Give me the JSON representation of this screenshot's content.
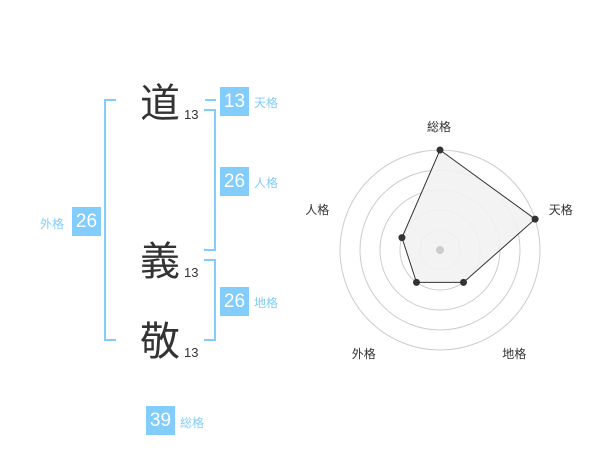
{
  "name": [
    {
      "char": "道",
      "strokes": "13"
    },
    {
      "char": "義",
      "strokes": "13"
    },
    {
      "char": "敬",
      "strokes": "13"
    }
  ],
  "kaku": {
    "tenkaku": {
      "label": "天格",
      "value": "13"
    },
    "jinkaku": {
      "label": "人格",
      "value": "26"
    },
    "chikaku": {
      "label": "地格",
      "value": "26"
    },
    "gaikaku": {
      "label": "外格",
      "value": "26"
    },
    "soukaku": {
      "label": "総格",
      "value": "39"
    }
  },
  "colors": {
    "accent": "#82cdfb",
    "ring": "#cccccc",
    "polygon_fill": "#f2f2f2",
    "point": "#333333"
  },
  "chart_data": {
    "type": "radar",
    "axes": [
      "総格",
      "天格",
      "地格",
      "外格",
      "人格"
    ],
    "values": [
      5,
      5,
      2,
      2,
      2
    ],
    "range": [
      0,
      5
    ],
    "rings": 5
  }
}
